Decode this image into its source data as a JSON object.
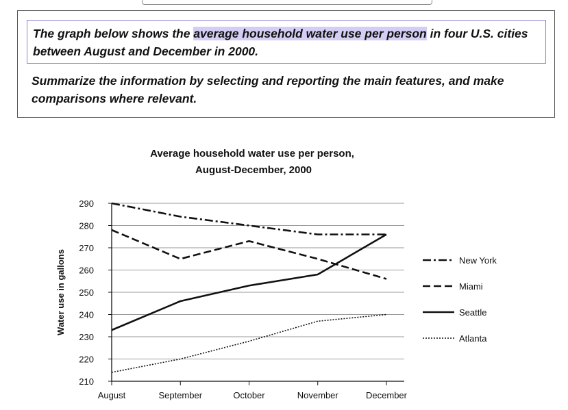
{
  "prompt": {
    "task_prefix": "The graph below shows the ",
    "task_highlight": "average household water use per person",
    "task_suffix": " in four U.S. cities between August and December in 2000.",
    "summary": "Summarize the information by selecting and reporting the main features, and make comparisons where relevant."
  },
  "chart_data": {
    "type": "line",
    "title_line1": "Average household water use per person,",
    "title_line2": "August-December, 2000",
    "xlabel": "",
    "ylabel": "Water use in gallons",
    "categories": [
      "August",
      "September",
      "October",
      "November",
      "December"
    ],
    "ylim": [
      210,
      290
    ],
    "yticks": [
      210,
      220,
      230,
      240,
      250,
      260,
      270,
      280,
      290
    ],
    "grid": true,
    "legend_position": "right",
    "series": [
      {
        "name": "New York",
        "style": "dash-dot",
        "values": [
          290,
          284,
          280,
          276,
          276
        ]
      },
      {
        "name": "Miami",
        "style": "dash",
        "values": [
          278,
          265,
          273,
          265,
          256
        ]
      },
      {
        "name": "Seattle",
        "style": "solid",
        "values": [
          233,
          246,
          253,
          258,
          276
        ]
      },
      {
        "name": "Atlanta",
        "style": "dotted",
        "values": [
          214,
          220,
          228,
          237,
          240
        ]
      }
    ]
  }
}
